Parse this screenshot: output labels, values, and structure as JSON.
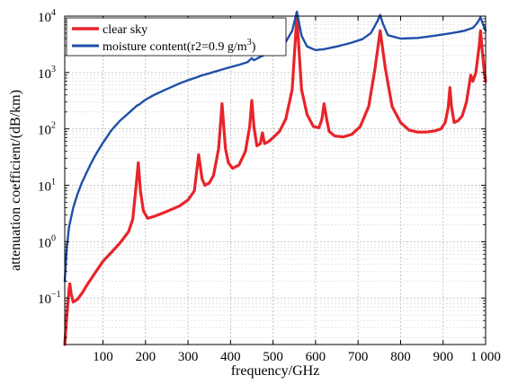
{
  "chart_data": {
    "type": "line",
    "xlabel": "frequency/GHz",
    "ylabel": "attenuation coefficient/(dB/km)",
    "xlim": [
      10,
      1000
    ],
    "ylim": [
      0.015,
      10000
    ],
    "yscale": "log",
    "grid": true,
    "legend_position": "top-left",
    "x_ticks": [
      100,
      200,
      300,
      400,
      500,
      600,
      700,
      800,
      900,
      1000
    ],
    "x_tick_labels": [
      "100",
      "200",
      "300",
      "400",
      "500",
      "600",
      "700",
      "800",
      "900",
      "1 000"
    ],
    "y_ticks": [
      0.1,
      1,
      10,
      100,
      1000,
      10000
    ],
    "y_tick_bases": [
      "10",
      "10",
      "10",
      "10",
      "10",
      "10"
    ],
    "y_tick_exps": [
      "−1",
      "0",
      "1",
      "2",
      "3",
      "4"
    ],
    "series": [
      {
        "name": "clear sky",
        "color": "#e8242a",
        "points": [
          [
            10,
            0.015
          ],
          [
            15,
            0.05
          ],
          [
            20,
            0.14
          ],
          [
            22,
            0.18
          ],
          [
            25,
            0.12
          ],
          [
            30,
            0.085
          ],
          [
            40,
            0.095
          ],
          [
            50,
            0.12
          ],
          [
            60,
            0.16
          ],
          [
            80,
            0.27
          ],
          [
            100,
            0.45
          ],
          [
            120,
            0.65
          ],
          [
            140,
            0.95
          ],
          [
            160,
            1.5
          ],
          [
            170,
            2.5
          ],
          [
            178,
            10
          ],
          [
            183,
            25
          ],
          [
            188,
            8
          ],
          [
            195,
            3.5
          ],
          [
            205,
            2.6
          ],
          [
            220,
            2.8
          ],
          [
            240,
            3.2
          ],
          [
            260,
            3.7
          ],
          [
            280,
            4.3
          ],
          [
            300,
            5.5
          ],
          [
            315,
            8
          ],
          [
            325,
            35
          ],
          [
            333,
            13
          ],
          [
            340,
            10
          ],
          [
            350,
            11
          ],
          [
            360,
            15
          ],
          [
            372,
            45
          ],
          [
            380,
            280
          ],
          [
            388,
            45
          ],
          [
            395,
            25
          ],
          [
            405,
            20
          ],
          [
            420,
            23
          ],
          [
            435,
            40
          ],
          [
            445,
            110
          ],
          [
            450,
            320
          ],
          [
            455,
            110
          ],
          [
            462,
            50
          ],
          [
            470,
            55
          ],
          [
            475,
            85
          ],
          [
            480,
            55
          ],
          [
            490,
            60
          ],
          [
            500,
            70
          ],
          [
            515,
            90
          ],
          [
            530,
            150
          ],
          [
            545,
            500
          ],
          [
            556,
            10000
          ],
          [
            567,
            500
          ],
          [
            580,
            180
          ],
          [
            595,
            110
          ],
          [
            608,
            105
          ],
          [
            615,
            150
          ],
          [
            620,
            280
          ],
          [
            626,
            150
          ],
          [
            632,
            90
          ],
          [
            645,
            75
          ],
          [
            665,
            72
          ],
          [
            685,
            80
          ],
          [
            705,
            110
          ],
          [
            725,
            250
          ],
          [
            740,
            1200
          ],
          [
            752,
            5500
          ],
          [
            764,
            1200
          ],
          [
            780,
            250
          ],
          [
            800,
            130
          ],
          [
            820,
            95
          ],
          [
            840,
            88
          ],
          [
            860,
            88
          ],
          [
            880,
            92
          ],
          [
            895,
            100
          ],
          [
            905,
            130
          ],
          [
            912,
            240
          ],
          [
            916,
            540
          ],
          [
            920,
            240
          ],
          [
            926,
            130
          ],
          [
            935,
            140
          ],
          [
            945,
            170
          ],
          [
            955,
            300
          ],
          [
            965,
            900
          ],
          [
            970,
            700
          ],
          [
            977,
            1000
          ],
          [
            985,
            3000
          ],
          [
            988,
            5500
          ],
          [
            992,
            2500
          ],
          [
            996,
            1200
          ],
          [
            1000,
            700
          ]
        ]
      },
      {
        "name": "moisture content(r2=0.9 g/m³)",
        "name_prefix": "moisture content(r2=0.9 g/m",
        "name_exp": "3",
        "name_suffix": ")",
        "color": "#1f4fa8",
        "points": [
          [
            10,
            0.2
          ],
          [
            15,
            0.8
          ],
          [
            20,
            1.8
          ],
          [
            30,
            4
          ],
          [
            40,
            7
          ],
          [
            50,
            11
          ],
          [
            60,
            16
          ],
          [
            70,
            23
          ],
          [
            80,
            32
          ],
          [
            90,
            43
          ],
          [
            100,
            57
          ],
          [
            120,
            95
          ],
          [
            140,
            140
          ],
          [
            160,
            190
          ],
          [
            175,
            240
          ],
          [
            180,
            260
          ],
          [
            185,
            270
          ],
          [
            200,
            330
          ],
          [
            220,
            400
          ],
          [
            240,
            470
          ],
          [
            260,
            550
          ],
          [
            280,
            640
          ],
          [
            300,
            730
          ],
          [
            320,
            820
          ],
          [
            330,
            880
          ],
          [
            340,
            920
          ],
          [
            360,
            1020
          ],
          [
            380,
            1130
          ],
          [
            400,
            1250
          ],
          [
            420,
            1370
          ],
          [
            440,
            1530
          ],
          [
            450,
            1800
          ],
          [
            455,
            1650
          ],
          [
            470,
            1900
          ],
          [
            490,
            2200
          ],
          [
            510,
            2600
          ],
          [
            530,
            3500
          ],
          [
            545,
            5500
          ],
          [
            552,
            9000
          ],
          [
            556,
            12000
          ],
          [
            560,
            8500
          ],
          [
            567,
            4500
          ],
          [
            580,
            2900
          ],
          [
            600,
            2500
          ],
          [
            620,
            2600
          ],
          [
            650,
            2900
          ],
          [
            680,
            3300
          ],
          [
            710,
            3900
          ],
          [
            730,
            5000
          ],
          [
            745,
            8000
          ],
          [
            752,
            10500
          ],
          [
            758,
            7500
          ],
          [
            770,
            4600
          ],
          [
            800,
            4000
          ],
          [
            840,
            4100
          ],
          [
            880,
            4500
          ],
          [
            920,
            5000
          ],
          [
            950,
            5500
          ],
          [
            970,
            6200
          ],
          [
            980,
            7500
          ],
          [
            988,
            9500
          ],
          [
            993,
            7500
          ],
          [
            1000,
            5500
          ]
        ]
      }
    ]
  }
}
